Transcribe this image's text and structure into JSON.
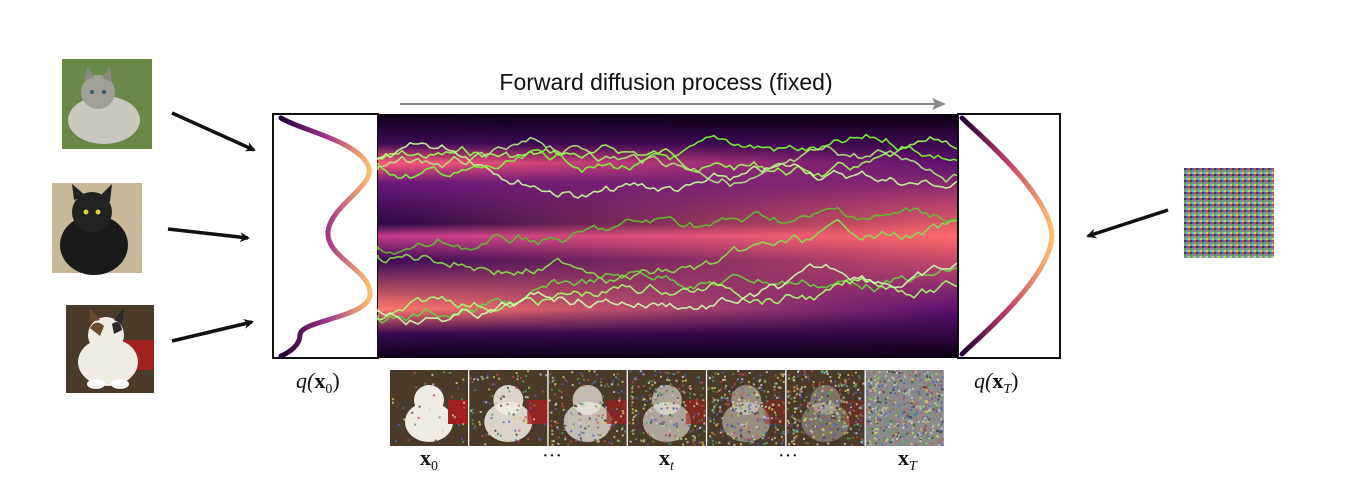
{
  "title": "Forward diffusion process (fixed)",
  "labels": {
    "q_x0": {
      "fn": "q(",
      "var": "x",
      "sub": "0",
      "close": ")"
    },
    "q_xT": {
      "fn": "q(",
      "var": "x",
      "sub": "T",
      "close": ")"
    }
  },
  "sequence_labels": [
    {
      "var": "x",
      "sub": "0"
    },
    {
      "text": "···"
    },
    {
      "var": "x",
      "sub": "t"
    },
    {
      "text": "···"
    },
    {
      "var": "x",
      "sub": "T"
    }
  ],
  "input_images": [
    "cat-photo-tabby",
    "cat-photo-black",
    "cat-photo-calico"
  ],
  "noise_image": "noise-image",
  "sequence_steps": 7,
  "colors": {
    "arrow": "#111111",
    "title_arrow": "#888888",
    "ribbon_dark": "#0b0014",
    "ribbon_mid": "#6a1a7a",
    "ribbon_hot": "#ff6a6a",
    "path_green": "#7cff3a",
    "curve_low": "#1a0033",
    "curve_high": "#ffc070"
  }
}
